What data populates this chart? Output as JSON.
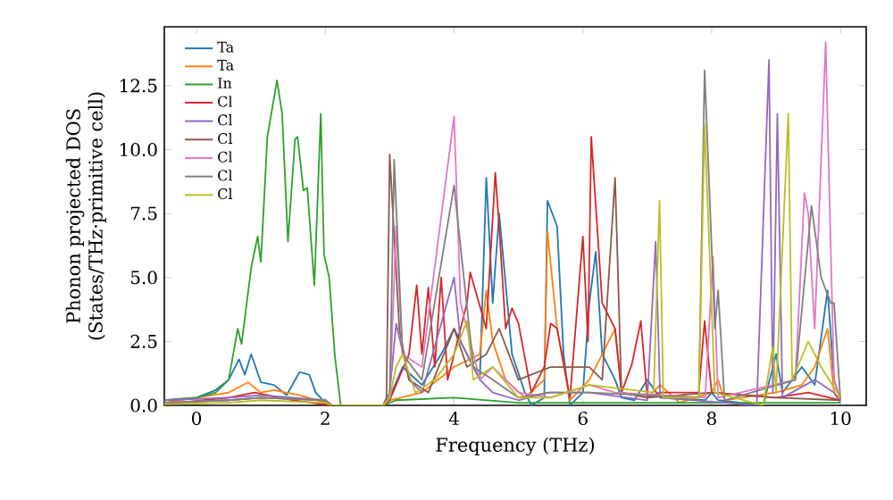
{
  "chart_data": {
    "type": "line",
    "xlabel": "Frequency (THz)",
    "ylabel": "Phonon projected DOS\n(States/THz·primitive cell)",
    "xlim": [
      -0.5,
      10.4
    ],
    "ylim": [
      0,
      14.8
    ],
    "xticks": [
      0,
      2,
      4,
      6,
      8,
      10
    ],
    "yticks": [
      {
        "value": 0,
        "label": "0.0"
      },
      2.5,
      {
        "value": 5,
        "label": "5.0"
      },
      7.5,
      {
        "value": 10,
        "label": "10.0"
      },
      12.5
    ],
    "legend": "top left",
    "series": [
      {
        "name": "Ta",
        "color": "#1f77b4",
        "x": [
          -0.5,
          0,
          0.3,
          0.5,
          0.66,
          0.75,
          0.85,
          1.0,
          1.2,
          1.4,
          1.6,
          1.75,
          1.85,
          2.0,
          2.1,
          2.9,
          3.0,
          3.2,
          3.5,
          3.8,
          4.0,
          4.2,
          4.4,
          4.5,
          4.6,
          4.7,
          4.9,
          5.1,
          5.2,
          5.4,
          5.45,
          5.6,
          5.7,
          5.8,
          6.0,
          6.1,
          6.2,
          6.3,
          6.5,
          6.6,
          6.8,
          7.0,
          7.2,
          7.9,
          8.0,
          8.1,
          8.8,
          9.0,
          9.1,
          9.4,
          9.6,
          9.8,
          9.9,
          10.0
        ],
        "values": [
          0.2,
          0.3,
          0.6,
          1.0,
          1.8,
          1.2,
          2.0,
          0.9,
          0.8,
          0.4,
          1.3,
          1.2,
          0.5,
          0.1,
          0,
          0,
          0.3,
          1.5,
          0.8,
          2.0,
          3.0,
          2.0,
          1.0,
          8.9,
          4.0,
          7.5,
          2.0,
          0.5,
          0,
          0.3,
          8.0,
          7.0,
          2.0,
          0,
          0.5,
          4.0,
          6.0,
          2.0,
          1.0,
          0.3,
          0.2,
          1.0,
          0.3,
          0.2,
          0.5,
          0.2,
          0,
          2.0,
          0.5,
          1.5,
          0.8,
          4.5,
          1.0,
          0.2
        ]
      },
      {
        "name": "Ta",
        "color": "#ff7f0e",
        "x": [
          -0.5,
          0.5,
          0.8,
          1.0,
          1.2,
          1.6,
          2.0,
          2.1,
          2.9,
          3.0,
          3.5,
          4.0,
          4.4,
          4.5,
          4.6,
          4.8,
          5.1,
          5.4,
          5.45,
          5.6,
          5.8,
          6.1,
          6.5,
          6.6,
          7.0,
          7.2,
          7.5,
          8.0,
          8.1,
          8.2,
          9.0,
          9.4,
          9.6,
          9.8,
          9.9,
          10.0
        ],
        "values": [
          0.1,
          0.5,
          0.9,
          0.5,
          0.6,
          0.4,
          0.1,
          0,
          0,
          0.2,
          0.5,
          1.5,
          2.0,
          4.5,
          2.5,
          1.0,
          0.3,
          1.0,
          6.8,
          3.0,
          0.2,
          1.0,
          3.0,
          0.5,
          0.3,
          0.8,
          0.1,
          0.5,
          1.0,
          0.2,
          0.5,
          0.8,
          1.5,
          3.0,
          0.5,
          0.2
        ]
      },
      {
        "name": "In",
        "color": "#2ca02c",
        "x": [
          -0.5,
          0,
          0.3,
          0.5,
          0.64,
          0.7,
          0.85,
          0.95,
          1.0,
          1.1,
          1.25,
          1.33,
          1.42,
          1.53,
          1.57,
          1.66,
          1.72,
          1.83,
          1.93,
          1.98,
          2.06,
          2.15,
          2.24,
          2.9,
          3.1,
          4.0,
          5.0,
          6.0,
          7.0,
          8.0,
          9.0,
          10.0
        ],
        "values": [
          0.2,
          0.3,
          0.5,
          1.0,
          3.0,
          2.4,
          5.4,
          6.6,
          5.6,
          10.5,
          12.7,
          11.4,
          6.4,
          10.4,
          10.5,
          8.4,
          8.5,
          4.7,
          11.4,
          5.9,
          5.0,
          1.9,
          0,
          0,
          0.2,
          0.3,
          0.1,
          0.1,
          0.1,
          0.1,
          0.1,
          0.1
        ]
      },
      {
        "name": "Cl",
        "color": "#d62728",
        "x": [
          -0.5,
          0.5,
          0.9,
          1.5,
          2.1,
          2.9,
          3.0,
          3.3,
          3.42,
          3.5,
          3.6,
          3.7,
          3.8,
          3.9,
          4.0,
          4.2,
          4.25,
          4.5,
          4.64,
          4.7,
          4.8,
          4.9,
          5.0,
          5.2,
          5.4,
          5.5,
          5.6,
          5.8,
          6.0,
          6.08,
          6.13,
          6.3,
          6.5,
          6.6,
          6.76,
          6.9,
          7.0,
          7.2,
          7.8,
          7.89,
          8.0,
          9.0,
          9.5,
          10.0
        ],
        "values": [
          0.05,
          0.3,
          0.5,
          0.2,
          0,
          0,
          0.2,
          2.0,
          4.7,
          2.0,
          4.6,
          1.5,
          5.0,
          1.0,
          2.0,
          4.0,
          5.2,
          3.0,
          9.1,
          7.0,
          3.0,
          3.8,
          3.2,
          0.5,
          1.5,
          3.2,
          3.0,
          0.3,
          6.6,
          2.5,
          10.5,
          4.0,
          3.0,
          0.5,
          1.6,
          3.3,
          0.3,
          0.5,
          0.5,
          3.3,
          0.5,
          0.3,
          0.5,
          0.2
        ]
      },
      {
        "name": "Cl",
        "color": "#9467bd",
        "x": [
          -0.5,
          0.5,
          1.0,
          2.0,
          2.1,
          2.9,
          3.0,
          3.1,
          3.3,
          3.5,
          4.0,
          4.1,
          4.4,
          4.6,
          5.0,
          5.45,
          6.1,
          7.0,
          7.13,
          7.2,
          8.7,
          8.89,
          8.95,
          9.02,
          9.1,
          9.6,
          9.9,
          10.0
        ],
        "values": [
          0.2,
          0.3,
          0.4,
          0.2,
          0,
          0,
          0.5,
          3.2,
          1.0,
          0.5,
          5.0,
          2.5,
          1.0,
          0.5,
          0.2,
          0.5,
          0.5,
          0.2,
          6.4,
          0.3,
          0,
          13.5,
          0.5,
          11.4,
          0.3,
          1.0,
          0.5,
          0.1
        ]
      },
      {
        "name": "Cl",
        "color": "#8c564b",
        "x": [
          -0.5,
          0.5,
          1.0,
          2.0,
          2.1,
          2.9,
          2.95,
          3.0,
          3.15,
          3.3,
          3.6,
          4.0,
          4.2,
          4.5,
          4.7,
          5.0,
          5.5,
          6.1,
          6.3,
          6.5,
          6.6,
          7.0,
          8.0,
          9.0,
          10.0
        ],
        "values": [
          0.1,
          0.2,
          0.3,
          0.2,
          0,
          0,
          0.3,
          9.8,
          3.0,
          1.0,
          0.5,
          3.0,
          1.5,
          2.0,
          3.0,
          1.0,
          1.5,
          1.5,
          1.0,
          8.9,
          0.5,
          0.3,
          0.5,
          0.3,
          0.2
        ]
      },
      {
        "name": "Cl",
        "color": "#e377c2",
        "x": [
          -0.5,
          0.5,
          1.0,
          2.0,
          2.1,
          2.9,
          3.0,
          3.1,
          3.2,
          3.5,
          4.0,
          4.1,
          4.4,
          4.6,
          5.0,
          5.5,
          6.1,
          6.5,
          7.9,
          8.02,
          8.1,
          9.3,
          9.44,
          9.5,
          9.6,
          9.77,
          9.9,
          10.0
        ],
        "values": [
          0.1,
          0.2,
          0.3,
          0.2,
          0,
          0,
          0.3,
          7.0,
          2.0,
          1.5,
          11.3,
          4.0,
          1.0,
          1.5,
          0.5,
          0.3,
          0.8,
          0.5,
          0.3,
          5.8,
          0.3,
          1.0,
          8.3,
          7.5,
          3.0,
          14.2,
          1.0,
          0.2
        ]
      },
      {
        "name": "Cl",
        "color": "#7f7f7f",
        "x": [
          -0.5,
          0.5,
          1.0,
          2.0,
          2.1,
          2.9,
          3.0,
          3.07,
          3.2,
          3.5,
          4.0,
          4.1,
          4.3,
          4.6,
          5.0,
          5.5,
          6.1,
          7.8,
          7.89,
          8.05,
          8.1,
          8.2,
          9.3,
          9.55,
          9.7,
          9.85,
          9.9,
          10.0
        ],
        "values": [
          0.1,
          0.2,
          0.3,
          0.2,
          0,
          0,
          0.3,
          9.6,
          2.0,
          1.0,
          8.6,
          6.2,
          1.5,
          1.0,
          0.3,
          0.5,
          0.5,
          0.3,
          13.1,
          3.0,
          4.5,
          0.2,
          1.0,
          7.8,
          5.0,
          4.0,
          4.0,
          0.2
        ]
      },
      {
        "name": "Cl",
        "color": "#bcbd22",
        "x": [
          -0.5,
          0.5,
          1.0,
          2.0,
          2.1,
          2.9,
          3.0,
          3.1,
          3.2,
          3.4,
          3.7,
          4.0,
          4.2,
          4.3,
          4.6,
          5.0,
          5.5,
          6.1,
          7.1,
          7.19,
          7.25,
          7.8,
          7.89,
          8.05,
          8.8,
          8.95,
          9.0,
          9.19,
          9.25,
          9.5,
          9.7,
          10.0
        ],
        "values": [
          0.05,
          0.1,
          0.2,
          0.1,
          0,
          0,
          0.3,
          1.5,
          2.0,
          0.5,
          1.0,
          2.0,
          3.3,
          1.0,
          1.5,
          0.3,
          0.3,
          0.8,
          0.5,
          8.0,
          0.3,
          0.3,
          11.0,
          0.5,
          0,
          2.3,
          0.5,
          11.4,
          1.0,
          2.5,
          1.5,
          0.3
        ]
      }
    ]
  }
}
